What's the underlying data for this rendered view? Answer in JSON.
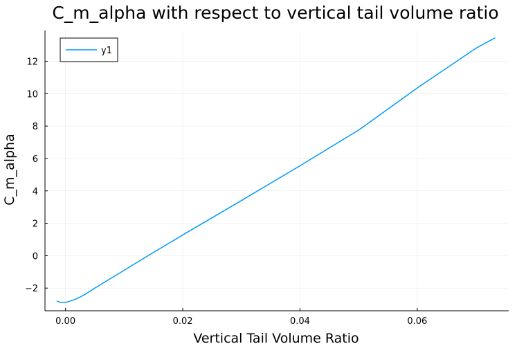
{
  "chart_data": {
    "type": "line",
    "title": "C_m_alpha with respect to vertical tail volume ratio",
    "xlabel": "Vertical Tail Volume Ratio",
    "ylabel": "C_m_alpha",
    "xlim": [
      -0.0035,
      0.0756
    ],
    "ylim": [
      -3.4,
      13.9
    ],
    "xticks": [
      0.0,
      0.02,
      0.04,
      0.06
    ],
    "xtick_labels": [
      "0.00",
      "0.02",
      "0.04",
      "0.06"
    ],
    "yticks": [
      -2,
      0,
      2,
      4,
      6,
      8,
      10,
      12
    ],
    "ytick_labels": [
      "−2",
      "0",
      "2",
      "4",
      "6",
      "8",
      "10",
      "12"
    ],
    "grid": true,
    "legend_position": "top-left",
    "series": [
      {
        "name": "y1",
        "color": "#009af9",
        "x": [
          -0.0015,
          -0.0008,
          0.0,
          0.0008,
          0.0015,
          0.0025,
          0.0035,
          0.005,
          0.0075,
          0.01,
          0.015,
          0.02,
          0.03,
          0.04,
          0.05,
          0.06,
          0.07,
          0.0733
        ],
        "y": [
          -2.8,
          -2.88,
          -2.88,
          -2.8,
          -2.72,
          -2.55,
          -2.35,
          -2.0,
          -1.45,
          -0.9,
          0.2,
          1.28,
          3.4,
          5.55,
          7.75,
          10.35,
          12.8,
          13.45
        ]
      }
    ]
  }
}
